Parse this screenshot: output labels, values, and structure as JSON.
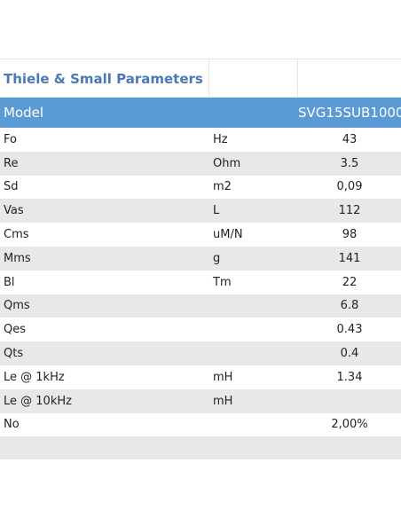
{
  "table": {
    "title": "Thiele & Small Parameters",
    "header": {
      "label": "Model",
      "unit": "",
      "value": "SVG15SUB1000"
    },
    "rows": [
      {
        "param": "Fo",
        "unit": "Hz",
        "value": "43"
      },
      {
        "param": "Re",
        "unit": "Ohm",
        "value": "3.5"
      },
      {
        "param": "Sd",
        "unit": "m2",
        "value": "0,09"
      },
      {
        "param": "Vas",
        "unit": "L",
        "value": "112"
      },
      {
        "param": "Cms",
        "unit": "uM/N",
        "value": "98"
      },
      {
        "param": "Mms",
        "unit": "g",
        "value": "141"
      },
      {
        "param": "Bl",
        "unit": "Tm",
        "value": "22"
      },
      {
        "param": "Qms",
        "unit": "",
        "value": "6.8"
      },
      {
        "param": "Qes",
        "unit": "",
        "value": "0.43"
      },
      {
        "param": "Qts",
        "unit": "",
        "value": "0.4"
      },
      {
        "param": "Le @ 1kHz",
        "unit": "mH",
        "value": "1.34"
      },
      {
        "param": "Le @ 10kHz",
        "unit": "mH",
        "value": ""
      },
      {
        "param": "No",
        "unit": "",
        "value": "2,00%"
      }
    ],
    "colors": {
      "header_bg": "#5b9bd5",
      "title": "#4a78b8",
      "stripe": "#e8e8e8"
    }
  }
}
